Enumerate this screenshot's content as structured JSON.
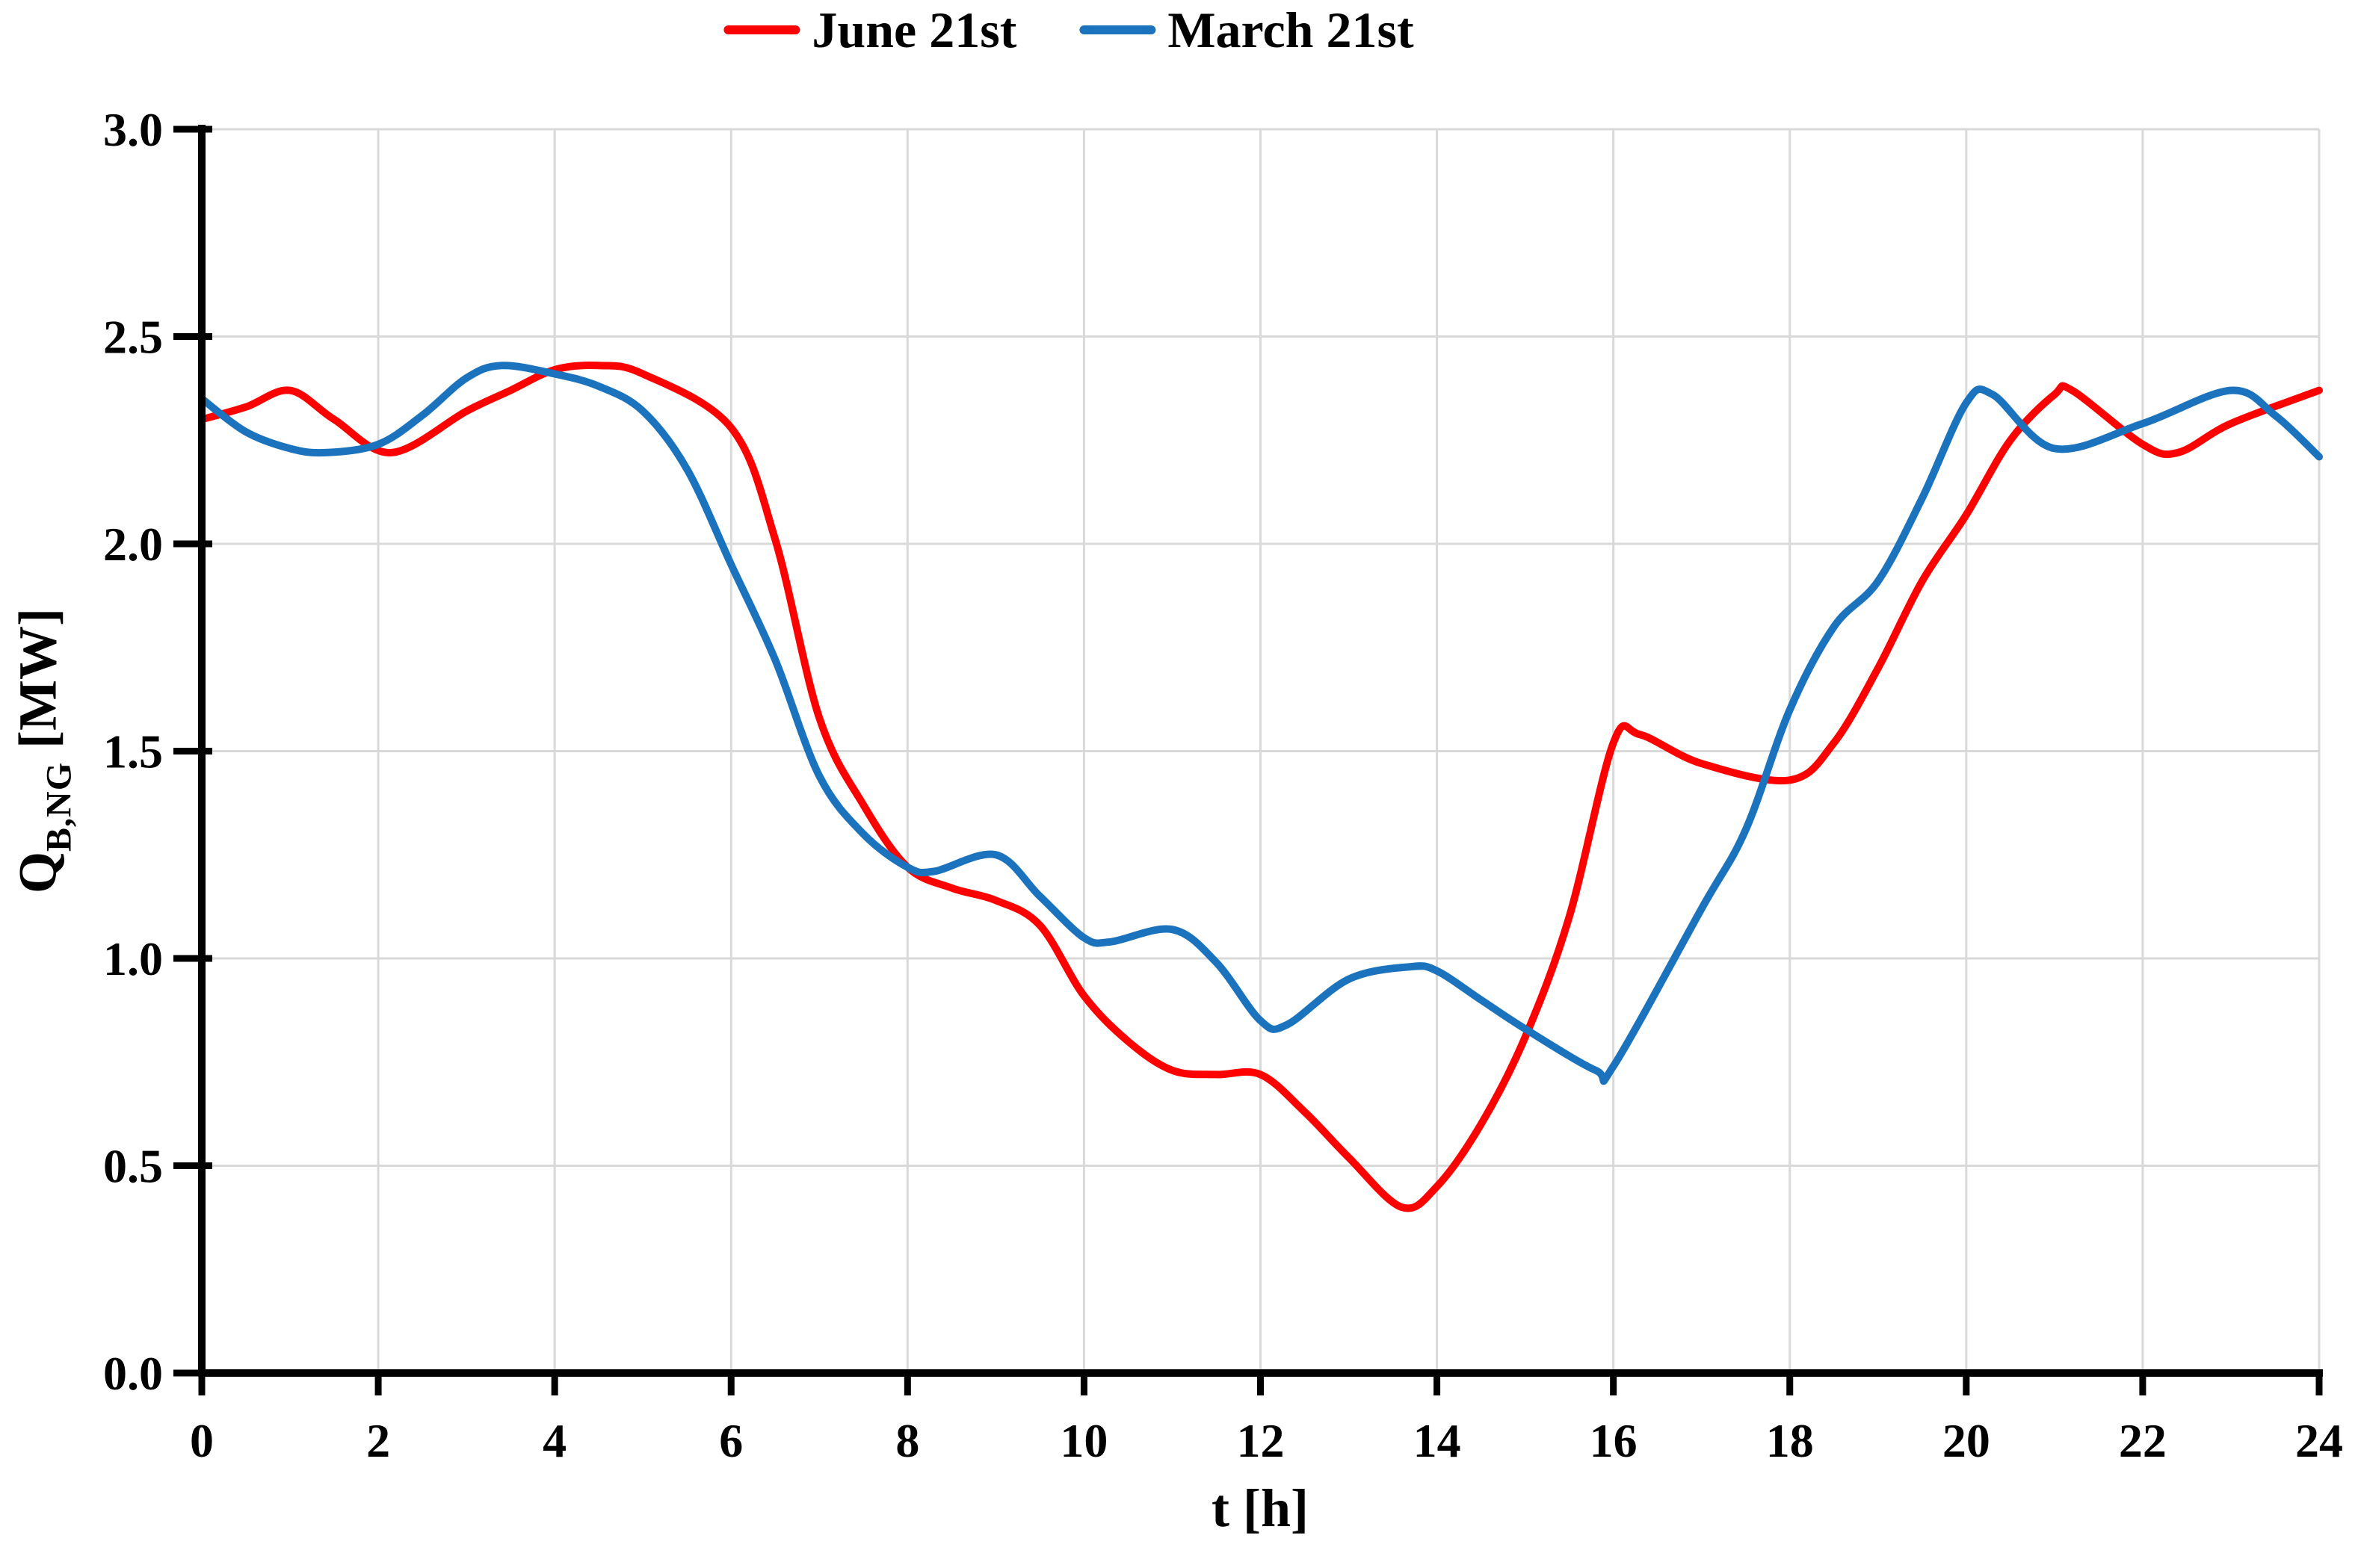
{
  "figure": {
    "background": "#ffffff"
  },
  "axes": {
    "x_title": "t [h]",
    "y_title": {
      "base": "Q",
      "sub": "B,NG",
      "unit": "[MW]"
    },
    "x_tick_labels": [
      "0",
      "2",
      "4",
      "6",
      "8",
      "10",
      "12",
      "14",
      "16",
      "18",
      "20",
      "22",
      "24"
    ],
    "y_tick_labels": [
      "0.0",
      "0.5",
      "1.0",
      "1.5",
      "2.0",
      "2.5",
      "3.0"
    ],
    "grid_color": "#D9D9D9",
    "axis_color": "#000000"
  },
  "chart_data": {
    "type": "line",
    "title": "",
    "xlabel": "t [h]",
    "ylabel": "Q_B,NG [MW]",
    "xlim": [
      0,
      24
    ],
    "ylim": [
      0.0,
      3.0
    ],
    "x_tick_step": 2,
    "y_tick_step": 0.5,
    "grid": true,
    "legend_position": "top-center",
    "series": [
      {
        "name": "June 21st",
        "color": "#FF0000",
        "points": [
          [
            0,
            2.3
          ],
          [
            0.5,
            2.33
          ],
          [
            1,
            2.37
          ],
          [
            1.5,
            2.3
          ],
          [
            2.15,
            2.22
          ],
          [
            3,
            2.32
          ],
          [
            3.5,
            2.37
          ],
          [
            4,
            2.42
          ],
          [
            4.5,
            2.43
          ],
          [
            5,
            2.41
          ],
          [
            6,
            2.28
          ],
          [
            6.5,
            2.01
          ],
          [
            7,
            1.58
          ],
          [
            7.5,
            1.37
          ],
          [
            8,
            1.22
          ],
          [
            8.5,
            1.17
          ],
          [
            9,
            1.14
          ],
          [
            9.5,
            1.08
          ],
          [
            10,
            0.91
          ],
          [
            10.5,
            0.8
          ],
          [
            11,
            0.73
          ],
          [
            11.5,
            0.72
          ],
          [
            12,
            0.72
          ],
          [
            12.5,
            0.63
          ],
          [
            13,
            0.52
          ],
          [
            13.6,
            0.4
          ],
          [
            14,
            0.45
          ],
          [
            14.5,
            0.6
          ],
          [
            15,
            0.81
          ],
          [
            15.5,
            1.1
          ],
          [
            16,
            1.52
          ],
          [
            16.3,
            1.54
          ],
          [
            17,
            1.47
          ],
          [
            18,
            1.43
          ],
          [
            18.5,
            1.52
          ],
          [
            19,
            1.7
          ],
          [
            19.5,
            1.91
          ],
          [
            20,
            2.07
          ],
          [
            20.5,
            2.25
          ],
          [
            21,
            2.36
          ],
          [
            21.2,
            2.37
          ],
          [
            22,
            2.24
          ],
          [
            22.4,
            2.22
          ],
          [
            23,
            2.29
          ],
          [
            24,
            2.37
          ]
        ]
      },
      {
        "name": "March 21st",
        "color": "#1B73BE",
        "points": [
          [
            0,
            2.35
          ],
          [
            0.5,
            2.27
          ],
          [
            1,
            2.23
          ],
          [
            1.4,
            2.22
          ],
          [
            2,
            2.24
          ],
          [
            2.5,
            2.31
          ],
          [
            3,
            2.4
          ],
          [
            3.4,
            2.43
          ],
          [
            4,
            2.41
          ],
          [
            4.5,
            2.38
          ],
          [
            5,
            2.32
          ],
          [
            5.5,
            2.18
          ],
          [
            6,
            1.95
          ],
          [
            6.5,
            1.72
          ],
          [
            7,
            1.44
          ],
          [
            7.5,
            1.3
          ],
          [
            8,
            1.22
          ],
          [
            8.3,
            1.21
          ],
          [
            9,
            1.25
          ],
          [
            9.5,
            1.15
          ],
          [
            10,
            1.05
          ],
          [
            10.3,
            1.04
          ],
          [
            11,
            1.07
          ],
          [
            11.5,
            0.99
          ],
          [
            12,
            0.85
          ],
          [
            12.3,
            0.84
          ],
          [
            13,
            0.95
          ],
          [
            13.7,
            0.98
          ],
          [
            14,
            0.97
          ],
          [
            14.5,
            0.9
          ],
          [
            15,
            0.83
          ],
          [
            15.8,
            0.73
          ],
          [
            16,
            0.74
          ],
          [
            17,
            1.12
          ],
          [
            17.5,
            1.31
          ],
          [
            18,
            1.6
          ],
          [
            18.5,
            1.8
          ],
          [
            19,
            1.91
          ],
          [
            19.5,
            2.11
          ],
          [
            20,
            2.34
          ],
          [
            20.3,
            2.36
          ],
          [
            21,
            2.23
          ],
          [
            22,
            2.29
          ],
          [
            23,
            2.37
          ],
          [
            23.5,
            2.31
          ],
          [
            24,
            2.21
          ]
        ]
      }
    ]
  }
}
